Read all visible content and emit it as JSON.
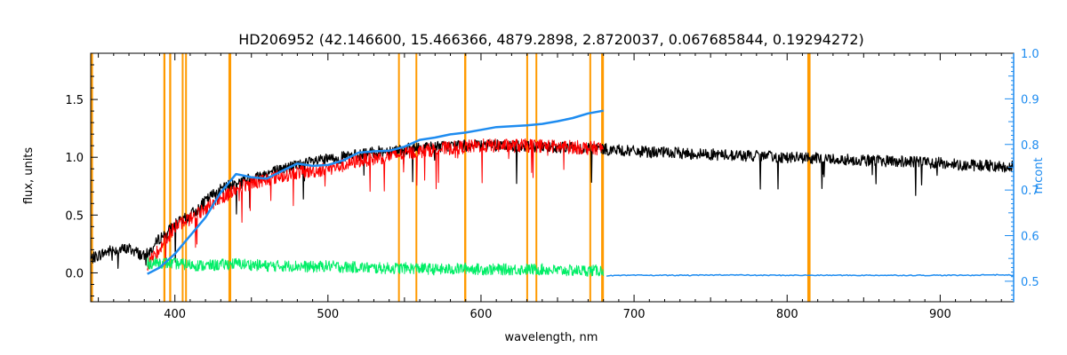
{
  "chart_data": {
    "type": "line",
    "title": "HD206952    (42.146600, 15.466366, 4879.2898, 2.8720037, 0.067685844, 0.19294272)",
    "xlabel": "wavelength, nm",
    "ylabel": "flux, units",
    "y2label": "mcont",
    "xlim": [
      345,
      948
    ],
    "ylim": [
      -0.25,
      1.9
    ],
    "y2lim": [
      0.455,
      1.0
    ],
    "x_ticks": [
      400,
      500,
      600,
      700,
      800,
      900
    ],
    "y_ticks": [
      0.0,
      0.5,
      1.0,
      1.5
    ],
    "y_tick_labels": [
      "0.0",
      "0.5",
      "1.0",
      "1.5"
    ],
    "y2_ticks": [
      0.5,
      0.6,
      0.7,
      0.8,
      0.9,
      1.0
    ],
    "y2_tick_labels": [
      "0.5",
      "0.6",
      "0.7",
      "0.8",
      "0.9",
      "1.0"
    ],
    "grid": false,
    "colors": {
      "observed": "#000000",
      "model": "#ff0000",
      "residual": "#00ee66",
      "continuum": "#1e8cf0",
      "mask": "#ff9a00",
      "axis2": "#1e8cf0",
      "axes": "#000000"
    },
    "masked_bands_nm": [
      [
        345,
        346.5
      ],
      [
        392.5,
        393.8
      ],
      [
        396.3,
        397.6
      ],
      [
        404.5,
        405.6
      ],
      [
        406.7,
        407.8
      ],
      [
        435,
        436.8
      ],
      [
        545.8,
        546.8
      ],
      [
        557.2,
        558.1
      ],
      [
        589,
        590.4
      ],
      [
        629.6,
        630.6
      ],
      [
        635.6,
        636.6
      ],
      [
        670.8,
        671.8
      ],
      [
        678.5,
        680.3
      ],
      [
        813.2,
        815.3
      ]
    ],
    "series": [
      {
        "role": "observed",
        "x": [
          345,
          350,
          355,
          360,
          365,
          370,
          375,
          380,
          385,
          390,
          395,
          400,
          405,
          410,
          415,
          420,
          425,
          430,
          435,
          440,
          445,
          450,
          460,
          470,
          480,
          490,
          500,
          510,
          520,
          530,
          540,
          550,
          560,
          570,
          580,
          590,
          600,
          610,
          620,
          630,
          640,
          650,
          660,
          670,
          680,
          690,
          700,
          720,
          740,
          760,
          780,
          800,
          820,
          840,
          860,
          880,
          900,
          920,
          930,
          940,
          948
        ],
        "y": [
          0.12,
          0.15,
          0.18,
          0.2,
          0.2,
          0.21,
          0.18,
          0.14,
          0.2,
          0.3,
          0.35,
          0.42,
          0.45,
          0.5,
          0.55,
          0.62,
          0.68,
          0.72,
          0.75,
          0.78,
          0.8,
          0.82,
          0.86,
          0.9,
          0.93,
          0.96,
          0.98,
          1.0,
          1.02,
          1.04,
          1.06,
          1.07,
          1.08,
          1.09,
          1.1,
          1.1,
          1.1,
          1.1,
          1.1,
          1.1,
          1.09,
          1.09,
          1.08,
          1.08,
          1.07,
          1.06,
          1.05,
          1.04,
          1.03,
          1.02,
          1.01,
          1.0,
          0.99,
          0.98,
          0.97,
          0.96,
          0.95,
          0.93,
          0.93,
          0.92,
          0.92
        ]
      },
      {
        "role": "model",
        "x": [
          382,
          390,
          400,
          410,
          420,
          430,
          440,
          450,
          460,
          470,
          480,
          490,
          500,
          510,
          520,
          530,
          540,
          550,
          560,
          570,
          580,
          590,
          600,
          610,
          620,
          630,
          640,
          650,
          660,
          670,
          680
        ],
        "y": [
          0.05,
          0.22,
          0.4,
          0.47,
          0.56,
          0.65,
          0.72,
          0.78,
          0.81,
          0.84,
          0.87,
          0.88,
          0.9,
          0.93,
          0.97,
          0.99,
          1.01,
          1.03,
          1.05,
          1.07,
          1.08,
          1.09,
          1.1,
          1.1,
          1.1,
          1.1,
          1.1,
          1.09,
          1.09,
          1.08,
          1.08
        ]
      },
      {
        "role": "residual",
        "x": [
          382,
          390,
          400,
          410,
          420,
          430,
          440,
          450,
          460,
          470,
          480,
          490,
          500,
          510,
          520,
          530,
          540,
          550,
          560,
          570,
          580,
          590,
          600,
          610,
          620,
          630,
          640,
          650,
          660,
          670,
          680
        ],
        "y": [
          0.08,
          0.09,
          0.08,
          0.07,
          0.06,
          0.07,
          0.08,
          0.07,
          0.06,
          0.06,
          0.06,
          0.05,
          0.06,
          0.05,
          0.05,
          0.04,
          0.04,
          0.04,
          0.04,
          0.03,
          0.03,
          0.04,
          0.03,
          0.03,
          0.03,
          0.03,
          0.03,
          0.02,
          0.02,
          0.02,
          0.02
        ]
      },
      {
        "role": "continuum",
        "axis": "right",
        "x": [
          382,
          390,
          400,
          410,
          420,
          430,
          440,
          450,
          460,
          470,
          480,
          490,
          500,
          510,
          520,
          530,
          540,
          550,
          560,
          570,
          580,
          590,
          600,
          610,
          620,
          630,
          640,
          650,
          660,
          670,
          680
        ],
        "y": [
          0.516,
          0.53,
          0.56,
          0.6,
          0.64,
          0.695,
          0.735,
          0.728,
          0.725,
          0.742,
          0.758,
          0.753,
          0.755,
          0.765,
          0.782,
          0.785,
          0.786,
          0.795,
          0.81,
          0.815,
          0.822,
          0.826,
          0.832,
          0.838,
          0.84,
          0.842,
          0.845,
          0.851,
          0.858,
          0.868,
          0.874
        ]
      },
      {
        "role": "continuum-residual",
        "axis": "right",
        "x": [
          682,
          700,
          740,
          760,
          780,
          800,
          820,
          860,
          900,
          920,
          930,
          940,
          948
        ],
        "y": [
          0.512,
          0.513,
          0.513,
          0.514,
          0.513,
          0.513,
          0.513,
          0.513,
          0.513,
          0.513,
          0.514,
          0.514,
          0.513
        ]
      }
    ]
  }
}
